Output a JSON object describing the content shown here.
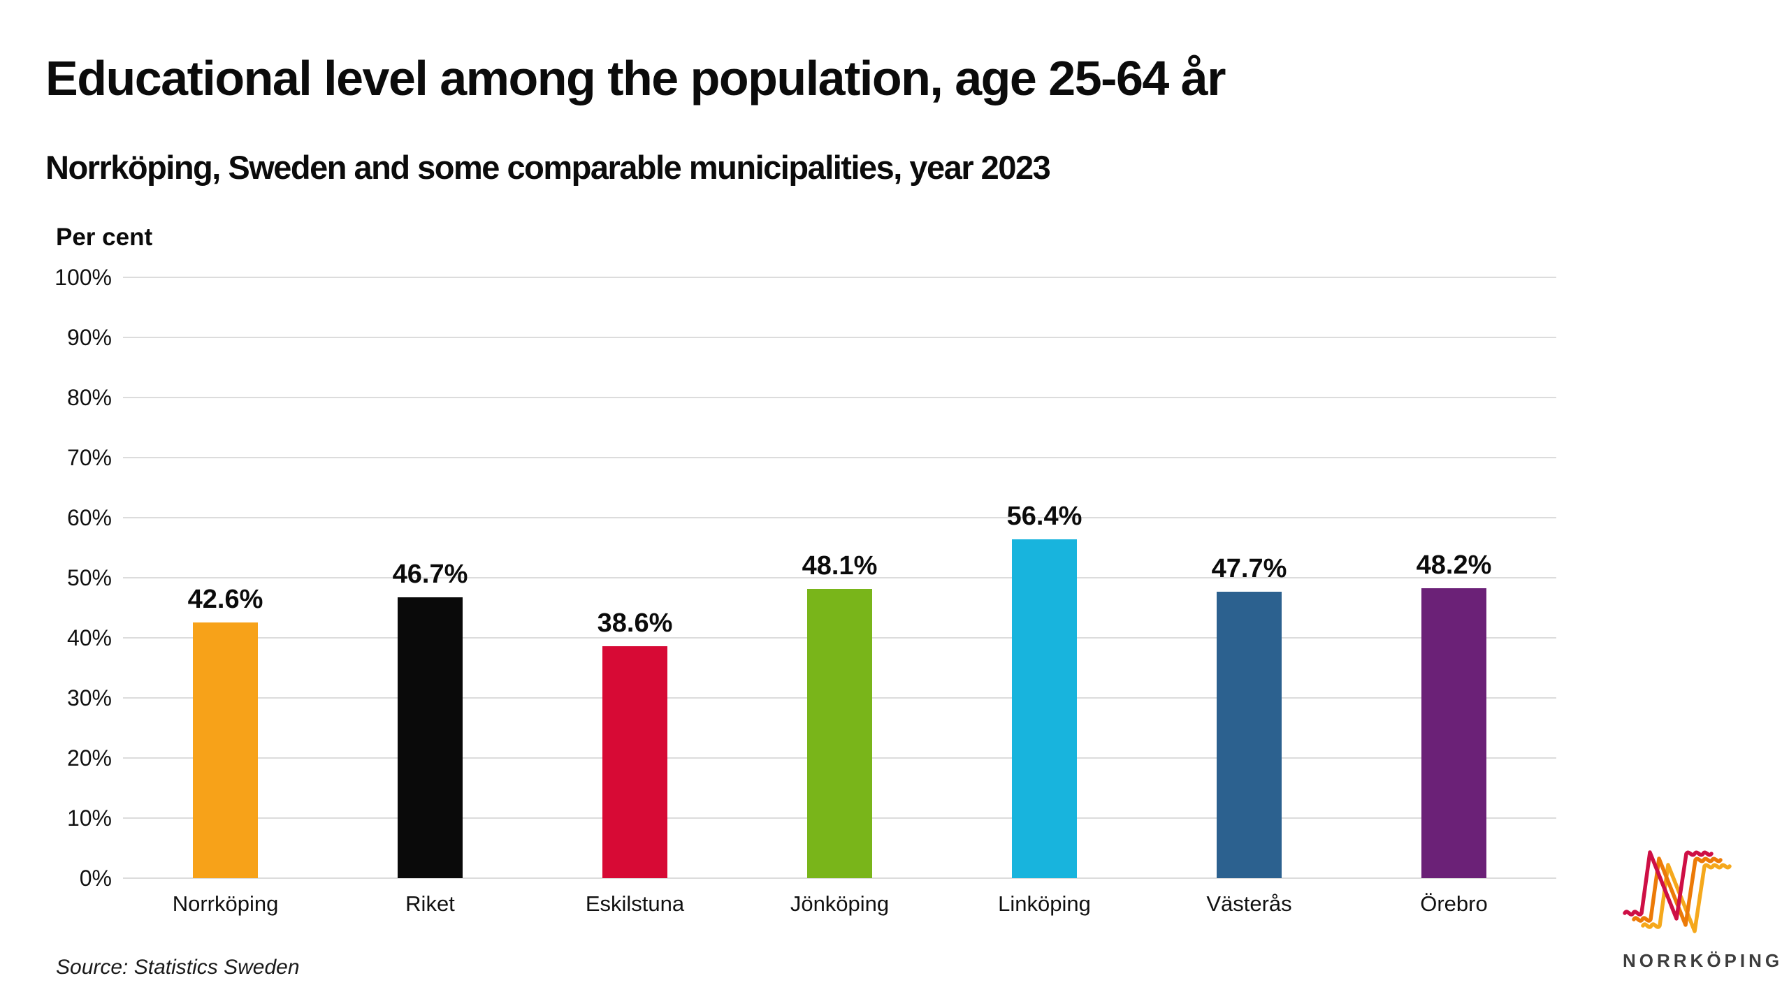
{
  "page": {
    "background": "#ffffff"
  },
  "header": {
    "title": "Educational level among the population, age 25-64 år",
    "subtitle": "Norrköping, Sweden and some comparable municipalities, year 2023"
  },
  "chart_data": {
    "type": "bar",
    "title": "Educational level among the population, age 25-64 år",
    "subtitle": "Norrköping, Sweden and some comparable municipalities, year 2023",
    "axis_label": "Per cent",
    "categories": [
      "Norrköping",
      "Riket",
      "Eskilstuna",
      "Jönköping",
      "Linköping",
      "Västerås",
      "Örebro"
    ],
    "values": [
      42.6,
      46.7,
      38.6,
      48.1,
      56.4,
      47.7,
      48.2
    ],
    "value_labels": [
      "42.6%",
      "46.7%",
      "38.6%",
      "48.1%",
      "56.4%",
      "47.7%",
      "48.2%"
    ],
    "bar_colors": [
      "#F7A219",
      "#0A0A0A",
      "#D70A35",
      "#79B51A",
      "#18B4DD",
      "#2C618F",
      "#6B2177"
    ],
    "yticks": [
      "0%",
      "10%",
      "20%",
      "30%",
      "40%",
      "50%",
      "60%",
      "70%",
      "80%",
      "90%",
      "100%"
    ],
    "ylim": [
      0,
      100
    ],
    "grid": "horizontal",
    "gridline_color": "#dcdcdc",
    "legend": "none",
    "source": "Source: Statistics Sweden"
  },
  "footer": {
    "source": "Source: Statistics Sweden"
  },
  "logo": {
    "text": "NORRKÖPING",
    "stroke_colors": [
      "#CE0F45",
      "#EC7A08",
      "#F5A81C"
    ],
    "text_color": "#3d3d3d"
  }
}
